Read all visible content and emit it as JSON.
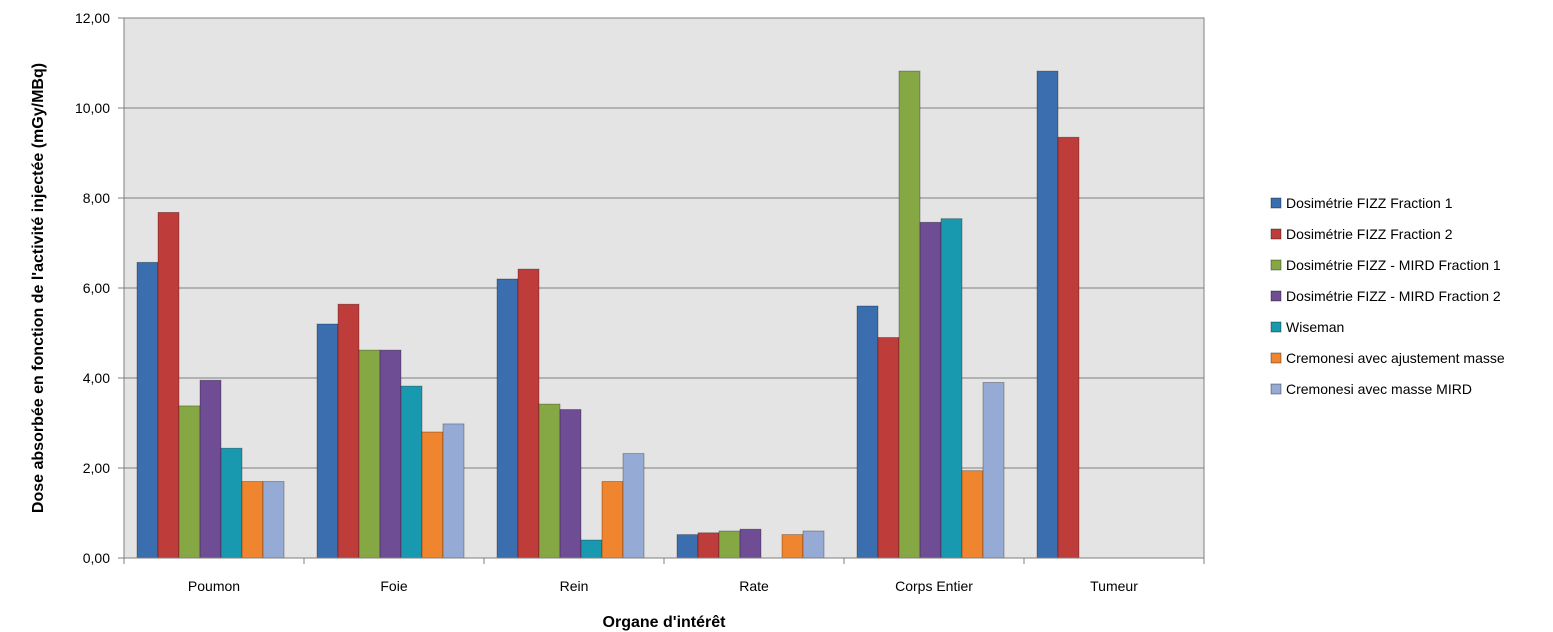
{
  "chart_data": {
    "type": "bar",
    "title": "",
    "xlabel": "Organe d'intérêt",
    "ylabel": "Dose absorbée en fonction de l'activité injectée (mGy/MBq)",
    "ylim": [
      0,
      12
    ],
    "yticks": [
      "0,00",
      "2,00",
      "4,00",
      "6,00",
      "8,00",
      "10,00",
      "12,00"
    ],
    "ytick_values": [
      0,
      2,
      4,
      6,
      8,
      10,
      12
    ],
    "grid": true,
    "legend_position": "right",
    "categories": [
      "Poumon",
      "Foie",
      "Rein",
      "Rate",
      "Corps Entier",
      "Tumeur"
    ],
    "series": [
      {
        "name": "Dosimétrie FIZZ Fraction 1",
        "color": "#3B6EAE",
        "values": [
          6.57,
          5.2,
          6.2,
          0.52,
          5.6,
          10.82
        ]
      },
      {
        "name": "Dosimétrie FIZZ Fraction 2",
        "color": "#BE3D3A",
        "values": [
          7.68,
          5.64,
          6.42,
          0.56,
          4.9,
          9.35
        ]
      },
      {
        "name": "Dosimétrie FIZZ - MIRD Fraction 1",
        "color": "#86A844",
        "values": [
          3.38,
          4.62,
          3.42,
          0.6,
          10.82,
          null
        ]
      },
      {
        "name": "Dosimétrie FIZZ - MIRD Fraction  2",
        "color": "#6E4D95",
        "values": [
          3.95,
          4.62,
          3.3,
          0.64,
          7.46,
          null
        ]
      },
      {
        "name": "Wiseman",
        "color": "#1899AF",
        "values": [
          2.44,
          3.82,
          0.4,
          null,
          7.54,
          null
        ]
      },
      {
        "name": "Cremonesi avec ajustement masse",
        "color": "#F08530",
        "values": [
          1.7,
          2.8,
          1.7,
          0.52,
          1.94,
          null
        ]
      },
      {
        "name": "Cremonesi avec masse MIRD",
        "color": "#95AAD4",
        "values": [
          1.7,
          2.98,
          2.32,
          0.6,
          3.9,
          null
        ]
      }
    ]
  }
}
